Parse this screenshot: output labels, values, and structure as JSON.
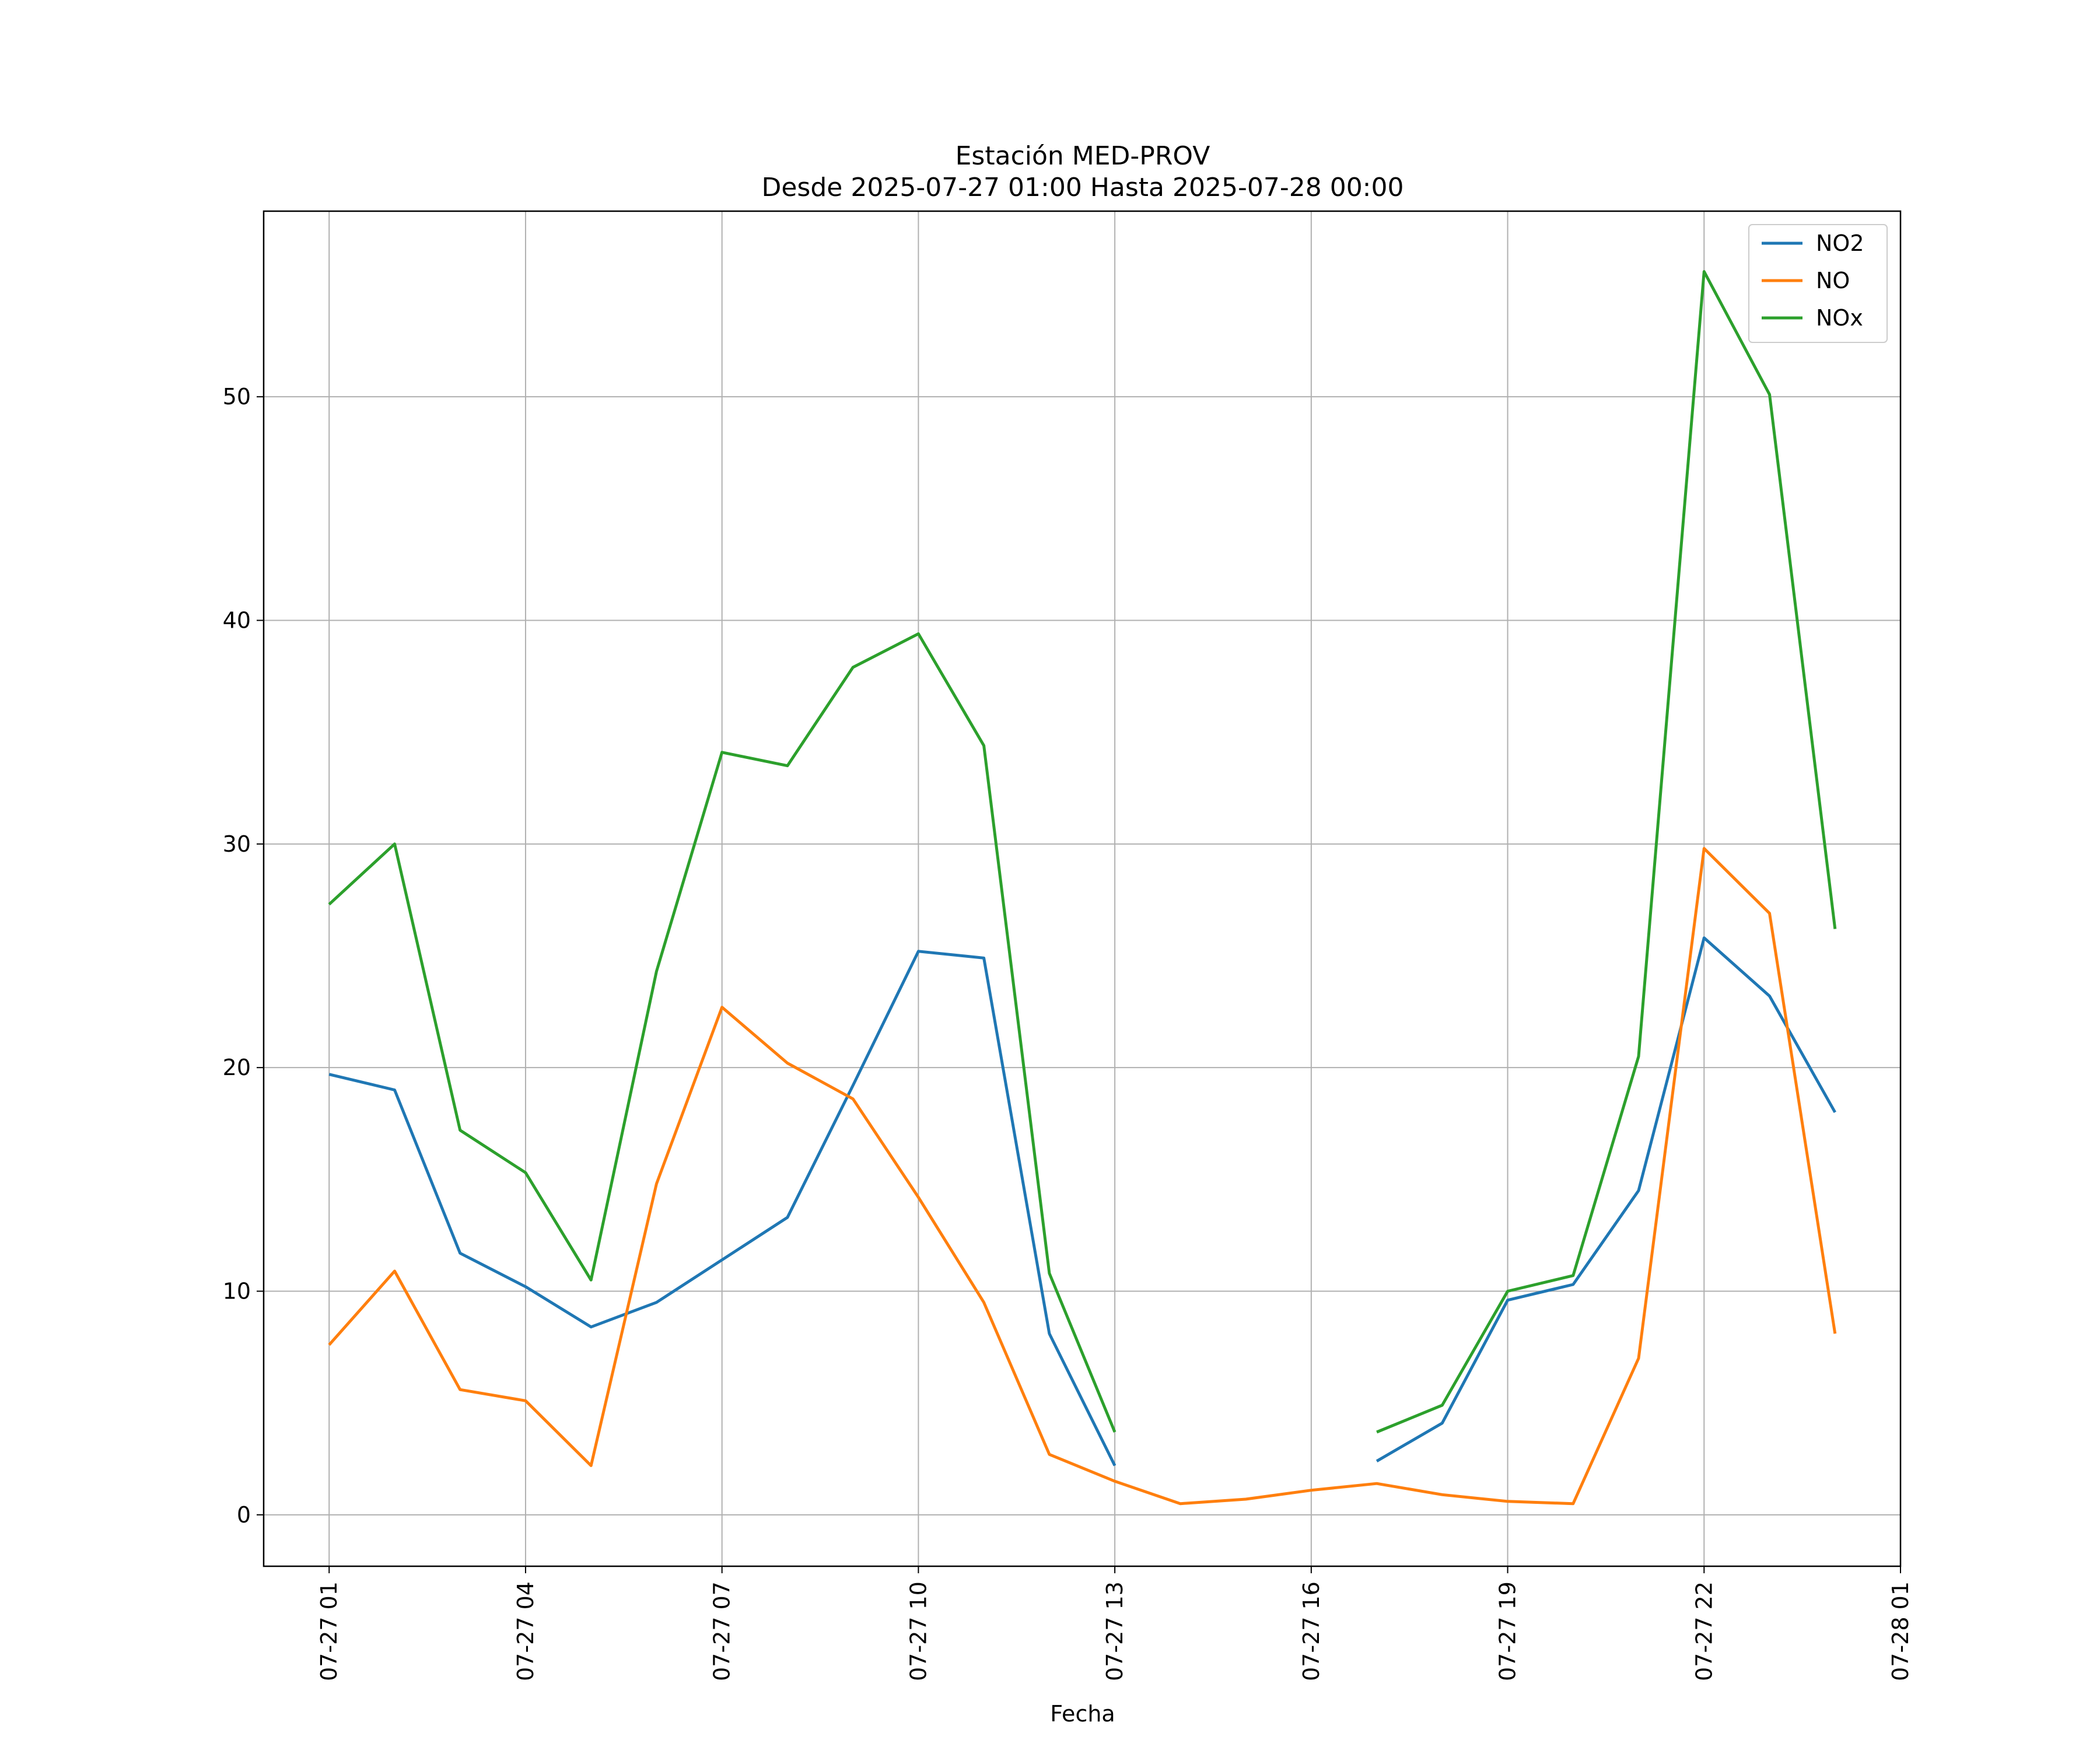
{
  "chart_data": {
    "type": "line",
    "title": "Estación MED-PROV",
    "subtitle": "Desde 2025-07-27 01:00 Hasta 2025-07-28 00:00",
    "xlabel": "Fecha",
    "ylabel": "",
    "x": [
      "2025-07-27 01:00",
      "2025-07-27 02:00",
      "2025-07-27 03:00",
      "2025-07-27 04:00",
      "2025-07-27 05:00",
      "2025-07-27 06:00",
      "2025-07-27 07:00",
      "2025-07-27 08:00",
      "2025-07-27 09:00",
      "2025-07-27 10:00",
      "2025-07-27 11:00",
      "2025-07-27 12:00",
      "2025-07-27 13:00",
      "2025-07-27 14:00",
      "2025-07-27 15:00",
      "2025-07-27 16:00",
      "2025-07-27 17:00",
      "2025-07-27 18:00",
      "2025-07-27 19:00",
      "2025-07-27 20:00",
      "2025-07-27 21:00",
      "2025-07-27 22:00",
      "2025-07-27 23:00",
      "2025-07-28 00:00"
    ],
    "x_ticks": [
      "07-27 01",
      "07-27 04",
      "07-27 07",
      "07-27 10",
      "07-27 13",
      "07-27 16",
      "07-27 19",
      "07-27 22",
      "07-28 01"
    ],
    "x_range": [
      "2025-07-27 00:00",
      "2025-07-28 01:00"
    ],
    "y_ticks": [
      "0",
      "10",
      "20",
      "30",
      "40",
      "50"
    ],
    "ylim": [
      -2.3,
      58.3
    ],
    "grid": true,
    "legend_position": "top-right",
    "series": [
      {
        "name": "NO2",
        "color": "#1f77b4",
        "values": [
          19.7,
          19.0,
          11.7,
          10.2,
          8.4,
          9.5,
          11.4,
          13.3,
          19.2,
          25.2,
          24.9,
          8.1,
          2.2,
          null,
          null,
          null,
          2.4,
          4.1,
          9.6,
          10.3,
          14.5,
          25.8,
          23.2,
          18.0
        ]
      },
      {
        "name": "NO",
        "color": "#ff7f0e",
        "values": [
          7.6,
          10.9,
          5.6,
          5.1,
          2.2,
          14.8,
          22.7,
          20.2,
          18.6,
          14.2,
          9.5,
          2.7,
          1.5,
          0.5,
          0.7,
          1.1,
          1.4,
          0.9,
          0.6,
          0.5,
          7.0,
          29.8,
          26.9,
          8.1
        ]
      },
      {
        "name": "NOx",
        "color": "#2ca02c",
        "values": [
          27.3,
          30.0,
          17.2,
          15.3,
          10.5,
          24.3,
          34.1,
          33.5,
          37.9,
          39.4,
          34.4,
          10.8,
          3.7,
          null,
          null,
          null,
          3.7,
          4.9,
          10.0,
          10.7,
          20.5,
          55.6,
          50.1,
          26.2
        ]
      }
    ]
  }
}
